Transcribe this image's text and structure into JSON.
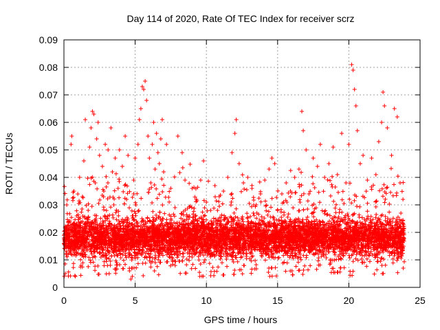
{
  "chart_data": {
    "type": "scatter",
    "title": "Day 114 of 2020, Rate Of TEC Index for receiver scrz",
    "xlabel": "GPS time / hours",
    "ylabel": "ROTI / TECUs",
    "xlim": [
      0,
      25
    ],
    "ylim": [
      0,
      0.09
    ],
    "x_ticks": [
      "0",
      "5",
      "10",
      "15",
      "20",
      "25"
    ],
    "y_ticks": [
      "0",
      "0.01",
      "0.02",
      "0.03",
      "0.04",
      "0.05",
      "0.06",
      "0.07",
      "0.08",
      "0.09"
    ],
    "x_tick_values": [
      0,
      5,
      10,
      15,
      20,
      25
    ],
    "y_tick_values": [
      0,
      0.01,
      0.02,
      0.03,
      0.04,
      0.05,
      0.06,
      0.07,
      0.08,
      0.09
    ],
    "grid": true,
    "marker": "plus",
    "color": "#ff0000",
    "series": [
      {
        "points": [
          [
            0.0,
            0.018
          ],
          [
            0.1,
            0.005
          ],
          [
            0.2,
            0.03
          ],
          [
            0.3,
            0.012
          ],
          [
            0.4,
            0.022
          ],
          [
            0.5,
            0.052
          ],
          [
            0.55,
            0.055
          ],
          [
            0.7,
            0.035
          ],
          [
            0.8,
            0.004
          ],
          [
            0.9,
            0.026
          ],
          [
            1.0,
            0.015
          ],
          [
            1.1,
            0.04
          ],
          [
            1.2,
            0.008
          ],
          [
            1.3,
            0.033
          ],
          [
            1.4,
            0.046
          ],
          [
            1.5,
            0.061
          ],
          [
            1.6,
            0.02
          ],
          [
            1.7,
            0.028
          ],
          [
            1.8,
            0.051
          ],
          [
            1.9,
            0.058
          ],
          [
            2.0,
            0.064
          ],
          [
            2.1,
            0.063
          ],
          [
            2.2,
            0.038
          ],
          [
            2.3,
            0.054
          ],
          [
            2.4,
            0.06
          ],
          [
            2.5,
            0.048
          ],
          [
            2.6,
            0.011
          ],
          [
            2.7,
            0.044
          ],
          [
            2.8,
            0.035
          ],
          [
            2.9,
            0.052
          ],
          [
            3.0,
            0.025
          ],
          [
            3.1,
            0.05
          ],
          [
            3.2,
            0.016
          ],
          [
            3.3,
            0.058
          ],
          [
            3.4,
            0.042
          ],
          [
            3.5,
            0.03
          ],
          [
            3.6,
            0.047
          ],
          [
            3.7,
            0.009
          ],
          [
            3.8,
            0.036
          ],
          [
            3.9,
            0.05
          ],
          [
            4.0,
            0.021
          ],
          [
            4.1,
            0.044
          ],
          [
            4.2,
            0.013
          ],
          [
            4.3,
            0.055
          ],
          [
            4.4,
            0.032
          ],
          [
            4.5,
            0.048
          ],
          [
            4.6,
            0.006
          ],
          [
            4.7,
            0.003
          ],
          [
            4.8,
            0.026
          ],
          [
            4.9,
            0.039
          ],
          [
            5.0,
            0.047
          ],
          [
            5.2,
            0.052
          ],
          [
            5.3,
            0.061
          ],
          [
            5.4,
            0.065
          ],
          [
            5.5,
            0.073
          ],
          [
            5.6,
            0.072
          ],
          [
            5.7,
            0.075
          ],
          [
            5.8,
            0.068
          ],
          [
            5.9,
            0.055
          ],
          [
            6.0,
            0.047
          ],
          [
            6.1,
            0.038
          ],
          [
            6.2,
            0.052
          ],
          [
            6.3,
            0.06
          ],
          [
            6.4,
            0.043
          ],
          [
            6.5,
            0.056
          ],
          [
            6.6,
            0.049
          ],
          [
            6.7,
            0.045
          ],
          [
            6.8,
            0.054
          ],
          [
            6.9,
            0.061
          ],
          [
            7.0,
            0.042
          ],
          [
            7.2,
            0.052
          ],
          [
            7.5,
            0.036
          ],
          [
            7.8,
            0.029
          ],
          [
            8.0,
            0.055
          ],
          [
            8.3,
            0.049
          ],
          [
            8.5,
            0.039
          ],
          [
            8.8,
            0.026
          ],
          [
            9.0,
            0.036
          ],
          [
            9.3,
            0.032
          ],
          [
            9.6,
            0.039
          ],
          [
            9.8,
            0.046
          ],
          [
            10.0,
            0.031
          ],
          [
            10.3,
            0.028
          ],
          [
            10.6,
            0.037
          ],
          [
            10.9,
            0.033
          ],
          [
            11.2,
            0.035
          ],
          [
            11.5,
            0.04
          ],
          [
            11.8,
            0.049
          ],
          [
            12.0,
            0.056
          ],
          [
            12.1,
            0.061
          ],
          [
            12.3,
            0.045
          ],
          [
            12.6,
            0.038
          ],
          [
            12.9,
            0.04
          ],
          [
            13.2,
            0.036
          ],
          [
            13.5,
            0.03
          ],
          [
            13.8,
            0.034
          ],
          [
            14.1,
            0.039
          ],
          [
            14.4,
            0.043
          ],
          [
            14.6,
            0.047
          ],
          [
            14.8,
            0.045
          ],
          [
            15.0,
            0.028
          ],
          [
            15.3,
            0.034
          ],
          [
            15.6,
            0.038
          ],
          [
            15.9,
            0.035
          ],
          [
            16.2,
            0.04
          ],
          [
            16.5,
            0.043
          ],
          [
            16.7,
            0.064
          ],
          [
            16.8,
            0.057
          ],
          [
            17.0,
            0.05
          ],
          [
            17.2,
            0.034
          ],
          [
            17.5,
            0.047
          ],
          [
            17.8,
            0.044
          ],
          [
            18.0,
            0.052
          ],
          [
            18.3,
            0.04
          ],
          [
            18.6,
            0.045
          ],
          [
            18.9,
            0.051
          ],
          [
            19.2,
            0.041
          ],
          [
            19.5,
            0.056
          ],
          [
            19.8,
            0.038
          ],
          [
            20.0,
            0.052
          ],
          [
            20.2,
            0.081
          ],
          [
            20.3,
            0.079
          ],
          [
            20.4,
            0.072
          ],
          [
            20.5,
            0.066
          ],
          [
            20.6,
            0.057
          ],
          [
            20.8,
            0.045
          ],
          [
            21.0,
            0.048
          ],
          [
            21.3,
            0.039
          ],
          [
            21.6,
            0.047
          ],
          [
            21.9,
            0.041
          ],
          [
            22.1,
            0.053
          ],
          [
            22.3,
            0.06
          ],
          [
            22.4,
            0.071
          ],
          [
            22.5,
            0.066
          ],
          [
            22.7,
            0.058
          ],
          [
            23.0,
            0.048
          ],
          [
            23.2,
            0.065
          ],
          [
            23.4,
            0.062
          ],
          [
            23.6,
            0.038
          ],
          [
            23.8,
            0.032
          ]
        ],
        "band": {
          "x_range": [
            0,
            23.9
          ],
          "dense_y_range": [
            0.008,
            0.028
          ],
          "median": 0.018
        }
      }
    ]
  }
}
